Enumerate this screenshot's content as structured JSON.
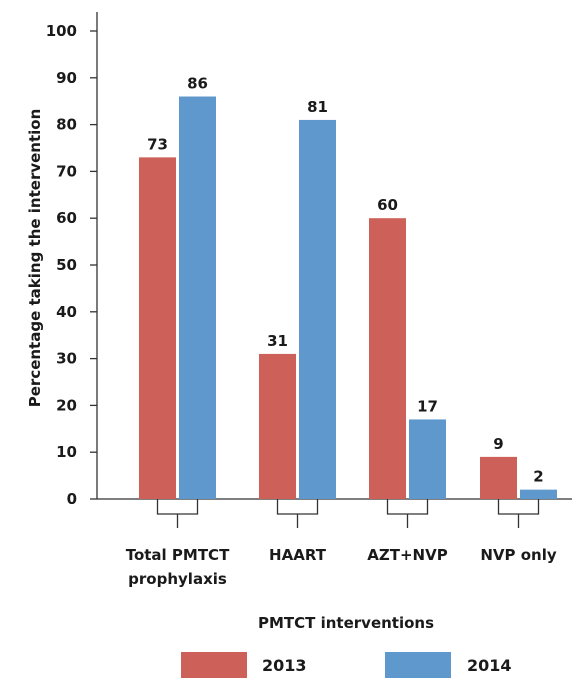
{
  "chart_data": {
    "type": "bar",
    "categories": [
      [
        "Total PMTCT",
        "prophylaxis"
      ],
      [
        "HAART"
      ],
      [
        "AZT+NVP"
      ],
      [
        "NVP only"
      ]
    ],
    "series": [
      {
        "name": "2013",
        "values": [
          73,
          31,
          60,
          9
        ],
        "color": "#cd6159"
      },
      {
        "name": "2014",
        "values": [
          86,
          81,
          17,
          2
        ],
        "color": "#5e98cd"
      }
    ],
    "xlabel": "PMTCT interventions",
    "ylabel": "Percentage taking the intervention",
    "ylim": [
      0,
      100
    ],
    "yticks": [
      0,
      10,
      20,
      30,
      40,
      50,
      60,
      70,
      80,
      90,
      100
    ],
    "legend_position": "bottom",
    "grid": false
  }
}
